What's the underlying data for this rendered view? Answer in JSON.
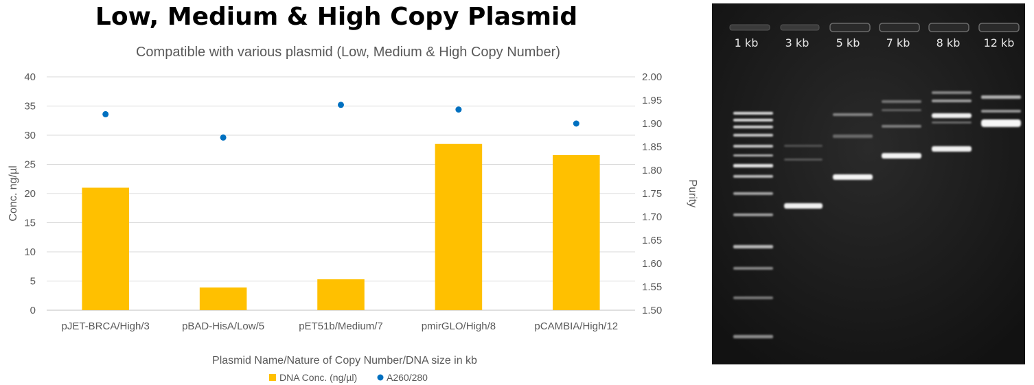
{
  "chart_data": {
    "type": "bar",
    "title": "Low, Medium & High Copy Plasmid",
    "subtitle": "Compatible with various plasmid (Low, Medium & High Copy Number)",
    "xlabel": "Plasmid Name/Nature of Copy Number/DNA size in kb",
    "ylabel": "Conc. ng/µl",
    "y2label": "Purity",
    "categories": [
      "pJET-BRCA/High/3",
      "pBAD-HisA/Low/5",
      "pET51b/Medium/7",
      "pmirGLO/High/8",
      "pCAMBIA/High/12"
    ],
    "ylim": [
      0,
      40
    ],
    "yticks": [
      "0",
      "5",
      "10",
      "15",
      "20",
      "25",
      "30",
      "35",
      "40"
    ],
    "y2lim": [
      1.5,
      2.0
    ],
    "y2ticks": [
      "1.50",
      "1.55",
      "1.60",
      "1.65",
      "1.70",
      "1.75",
      "1.80",
      "1.85",
      "1.90",
      "1.95",
      "2.00"
    ],
    "grid": true,
    "legend_position": "bottom",
    "series": [
      {
        "name": "DNA Conc. (ng/µl)",
        "type": "bar",
        "axis": "left",
        "color": "#FFC000",
        "values": [
          21.0,
          3.9,
          5.3,
          28.5,
          26.6
        ]
      },
      {
        "name": "A260/280",
        "type": "scatter",
        "axis": "right",
        "color": "#0070C0",
        "values": [
          1.92,
          1.87,
          1.94,
          1.93,
          1.9
        ]
      }
    ]
  },
  "gel": {
    "lane_labels": [
      "1 kb",
      "3 kb",
      "5 kb",
      "7 kb",
      "8 kb",
      "12 kb"
    ]
  }
}
